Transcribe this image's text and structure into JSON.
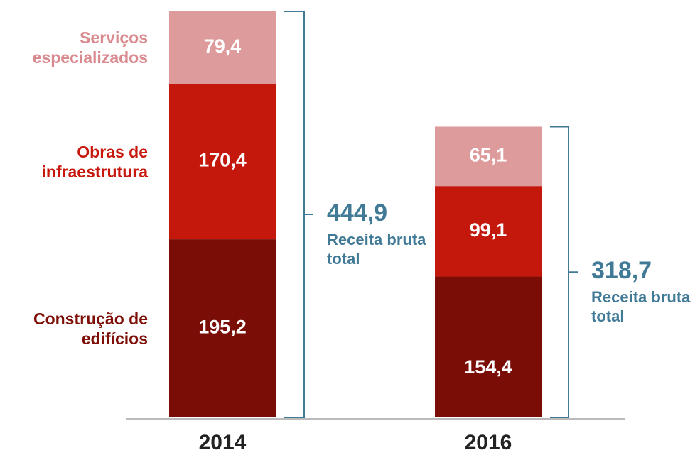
{
  "chart_data": {
    "type": "stacked_bar",
    "categories": [
      "2014",
      "2016"
    ],
    "series": [
      {
        "name": "Construção de edifícios",
        "color": "#7a0e07",
        "text_color": "#7d0f08",
        "values": [
          195.2,
          154.4
        ],
        "value_labels": [
          "195,2",
          "154,4"
        ]
      },
      {
        "name": "Obras de infraestrutura",
        "color": "#c4180d",
        "text_color": "#c8170d",
        "values": [
          170.4,
          99.1
        ],
        "value_labels": [
          "170,4",
          "99,1"
        ]
      },
      {
        "name": "Serviços especializados",
        "color": "#de9b9b",
        "text_color": "#d98a8f",
        "values": [
          79.4,
          65.1
        ],
        "value_labels": [
          "79,4",
          "65,1"
        ]
      }
    ],
    "totals": {
      "values": [
        444.9,
        318.7
      ],
      "value_labels": [
        "444,9",
        "318,7"
      ],
      "label": "Receita bruta total",
      "color": "#417a96"
    }
  }
}
